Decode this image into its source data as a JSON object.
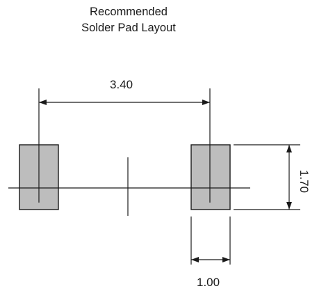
{
  "title": {
    "line1": "Recommended",
    "line2": "Solder Pad Layout"
  },
  "dimensions": {
    "pad_pitch": "3.40",
    "pad_width": "1.00",
    "pad_height": "1.70"
  },
  "colors": {
    "pad_fill": "#bdbdbd",
    "line": "#1a1a1a",
    "background": "#ffffff"
  }
}
